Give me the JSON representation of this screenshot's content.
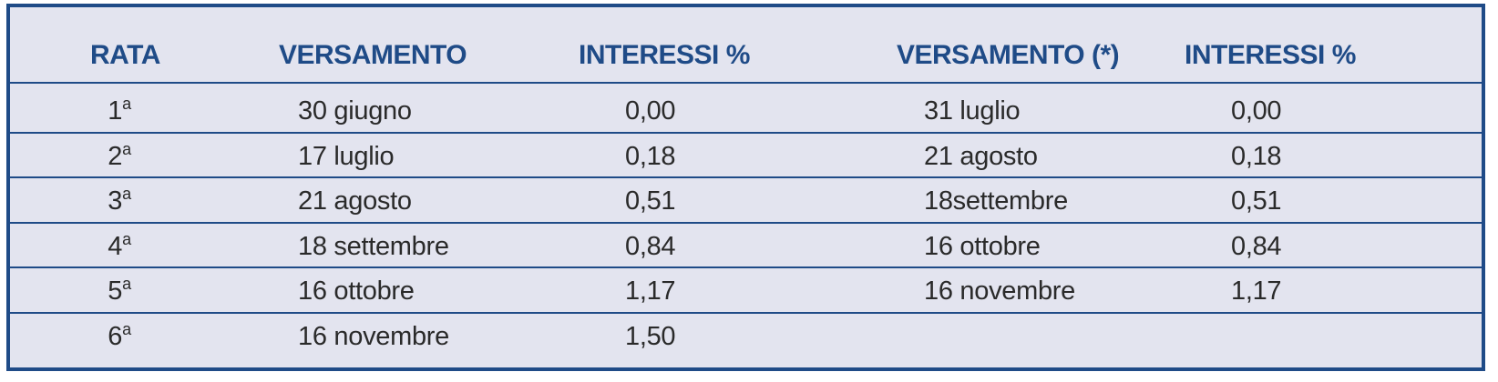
{
  "table": {
    "headers": {
      "rata": "RATA",
      "versamento": "VERSAMENTO",
      "interessi_1": "INTERESSI %",
      "versamento_alt": "VERSAMENTO (*)",
      "interessi_2": "INTERESSI %"
    },
    "rows": [
      {
        "num": "1",
        "suffix": "a",
        "versamento": "30 giugno",
        "interessi": "0,00",
        "versamento_alt": "31 luglio",
        "interessi_alt": "0,00"
      },
      {
        "num": "2",
        "suffix": "a",
        "versamento": "17 luglio",
        "interessi": "0,18",
        "versamento_alt": "21 agosto",
        "interessi_alt": "0,18"
      },
      {
        "num": "3",
        "suffix": "a",
        "versamento": "21 agosto",
        "interessi": "0,51",
        "versamento_alt": "18settembre",
        "interessi_alt": "0,51"
      },
      {
        "num": "4",
        "suffix": "a",
        "versamento": "18 settembre",
        "interessi": "0,84",
        "versamento_alt": "16 ottobre",
        "interessi_alt": "0,84"
      },
      {
        "num": "5",
        "suffix": "a",
        "versamento": "16 ottobre",
        "interessi": "1,17",
        "versamento_alt": "16 novembre",
        "interessi_alt": "1,17"
      },
      {
        "num": "6",
        "suffix": "a",
        "versamento": "16 novembre",
        "interessi": "1,50",
        "versamento_alt": "",
        "interessi_alt": ""
      }
    ]
  },
  "colors": {
    "header_text": "#1f4b87",
    "border": "#1f4b87",
    "background": "#e3e4ef",
    "body_text": "#2a2a2a"
  }
}
